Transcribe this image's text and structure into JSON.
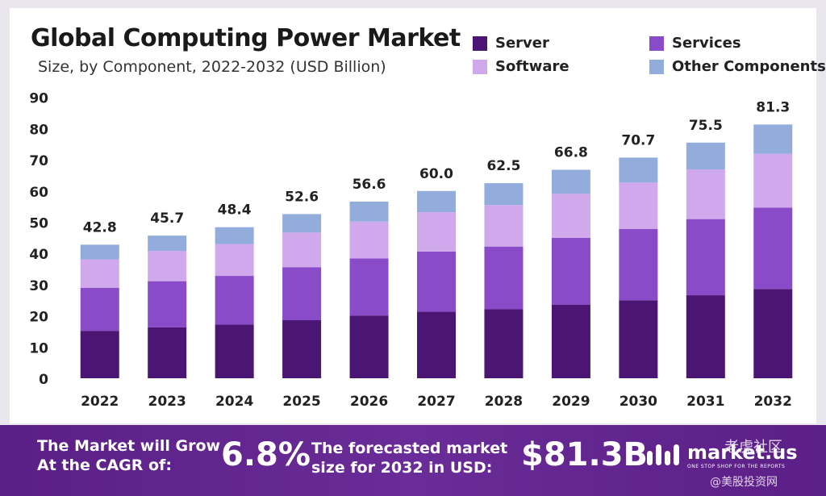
{
  "chart_data": {
    "type": "bar",
    "stacked": true,
    "title": "Global Computing Power Market",
    "subtitle": "Size, by Component, 2022-2032 (USD Billion)",
    "categories": [
      "2022",
      "2023",
      "2024",
      "2025",
      "2026",
      "2027",
      "2028",
      "2029",
      "2030",
      "2031",
      "2032"
    ],
    "series": [
      {
        "name": "Server",
        "color": "#4b1574",
        "values": [
          15.2,
          16.3,
          17.2,
          18.6,
          20.1,
          21.3,
          22.1,
          23.6,
          25.0,
          26.6,
          28.6
        ]
      },
      {
        "name": "Services",
        "color": "#8a4bc9",
        "values": [
          13.8,
          14.8,
          15.6,
          17.0,
          18.3,
          19.3,
          20.1,
          21.4,
          22.8,
          24.4,
          26.1
        ]
      },
      {
        "name": "Software",
        "color": "#cfa9ec",
        "values": [
          9.1,
          9.7,
          10.2,
          11.1,
          11.8,
          12.6,
          13.3,
          14.1,
          14.9,
          15.9,
          17.2
        ]
      },
      {
        "name": "Other Components",
        "color": "#92acdc",
        "values": [
          4.7,
          4.9,
          5.4,
          5.9,
          6.4,
          6.8,
          7.0,
          7.7,
          8.0,
          8.6,
          9.4
        ]
      }
    ],
    "totals": [
      "42.8",
      "45.7",
      "48.4",
      "52.6",
      "56.6",
      "60.0",
      "62.5",
      "66.8",
      "70.7",
      "75.5",
      "81.3"
    ],
    "yticks": [
      0,
      10,
      20,
      30,
      40,
      50,
      60,
      70,
      80,
      90
    ],
    "ylim": [
      0,
      90
    ],
    "xlabel": "",
    "ylabel": "",
    "grid": false,
    "legend_position": "top-right"
  },
  "footer": {
    "cagr_line1": "The Market will Grow",
    "cagr_line2": "At the CAGR of:",
    "cagr_value": "6.8%",
    "forecast_line1": "The forecasted market",
    "forecast_line2": "size for 2032 in USD:",
    "forecast_value": "$81.3B",
    "brand_name": "market.us",
    "brand_tagline": "ONE STOP SHOP FOR THE REPORTS",
    "watermark_top": "老虎社区",
    "watermark_bottom": "@美股投资网"
  }
}
